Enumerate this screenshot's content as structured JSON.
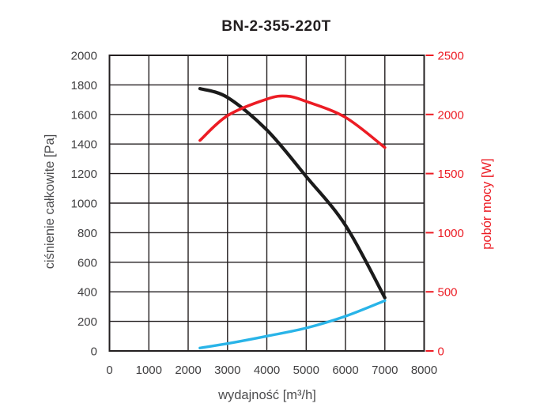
{
  "chart_data": {
    "type": "line",
    "title": "BN-2-355-220T",
    "xlabel": "wydajność [m³/h]",
    "ylabel_left": "ciśnienie całkowite [Pa]",
    "ylabel_right": "pobór mocy [W]",
    "xlim": [
      0,
      8000
    ],
    "ylim_left": [
      0,
      2000
    ],
    "ylim_right": [
      0,
      2500
    ],
    "xticks": [
      0,
      1000,
      2000,
      3000,
      4000,
      5000,
      6000,
      7000,
      8000
    ],
    "yticks_left": [
      0,
      200,
      400,
      600,
      800,
      1000,
      1200,
      1400,
      1600,
      1800,
      2000
    ],
    "yticks_right": [
      0,
      500,
      1000,
      1500,
      2000,
      2500
    ],
    "grid": "on",
    "legend": "none",
    "colors": {
      "curve_black": "#1b1b1b",
      "curve_red": "#ec1c24",
      "curve_blue": "#29b4e8",
      "right_axis": "#ec1c24",
      "tick_text": "#414042",
      "grid_line": "#231f20"
    },
    "series": [
      {
        "name": "total-pressure-curve-black",
        "axis": "left",
        "color_key": "curve_black",
        "stroke_width": 4.2,
        "x": [
          2300,
          3000,
          4000,
          5000,
          6000,
          7000
        ],
        "y": [
          1775,
          1715,
          1495,
          1180,
          850,
          360
        ]
      },
      {
        "name": "power-curve-red",
        "axis": "right",
        "color_key": "curve_red",
        "stroke_width": 3.6,
        "x": [
          2300,
          3000,
          4000,
          4500,
          5000,
          6000,
          7000
        ],
        "y": [
          1780,
          1990,
          2130,
          2155,
          2110,
          1975,
          1720
        ]
      },
      {
        "name": "dynamic-pressure-curve-blue",
        "axis": "left",
        "color_key": "curve_blue",
        "stroke_width": 3.4,
        "x": [
          2300,
          3000,
          4000,
          5000,
          6000,
          7000
        ],
        "y": [
          20,
          50,
          100,
          155,
          235,
          340
        ]
      }
    ]
  }
}
